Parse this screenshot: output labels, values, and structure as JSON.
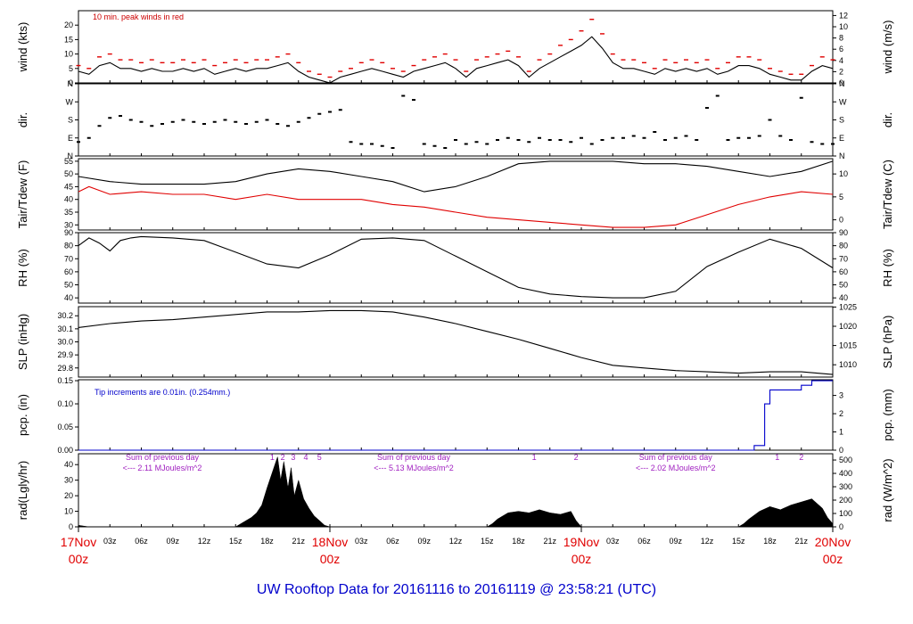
{
  "footer": {
    "title": "UW Rooftop Data for 20161116  to  20161119 @ 23:58:21  (UTC)"
  },
  "x_axis": {
    "start_utc": "2016-11-17 00z",
    "end_utc": "2016-11-20 00z",
    "range_hours": [
      0,
      72
    ],
    "hour_ticks": [
      {
        "h": 3,
        "label": "03z"
      },
      {
        "h": 6,
        "label": "06z"
      },
      {
        "h": 9,
        "label": "09z"
      },
      {
        "h": 12,
        "label": "12z"
      },
      {
        "h": 15,
        "label": "15z"
      },
      {
        "h": 18,
        "label": "18z"
      },
      {
        "h": 21,
        "label": "21z"
      },
      {
        "h": 27,
        "label": "03z"
      },
      {
        "h": 30,
        "label": "06z"
      },
      {
        "h": 33,
        "label": "09z"
      },
      {
        "h": 36,
        "label": "12z"
      },
      {
        "h": 39,
        "label": "15z"
      },
      {
        "h": 42,
        "label": "18z"
      },
      {
        "h": 45,
        "label": "21z"
      },
      {
        "h": 51,
        "label": "03z"
      },
      {
        "h": 54,
        "label": "06z"
      },
      {
        "h": 57,
        "label": "09z"
      },
      {
        "h": 60,
        "label": "12z"
      },
      {
        "h": 63,
        "label": "15z"
      },
      {
        "h": 66,
        "label": "18z"
      },
      {
        "h": 69,
        "label": "21z"
      }
    ],
    "day_ticks": [
      {
        "h": 0,
        "label": "17Nov",
        "sub": "00z"
      },
      {
        "h": 24,
        "label": "18Nov",
        "sub": "00z"
      },
      {
        "h": 48,
        "label": "19Nov",
        "sub": "00z"
      },
      {
        "h": 72,
        "label": "20Nov",
        "sub": "00z"
      }
    ]
  },
  "chart_data": [
    {
      "type": "line",
      "name": "wind",
      "ylabel": "wind (kts)",
      "ylabel_right": "wind (m/s)",
      "ylim": [
        0,
        25
      ],
      "yticks": [
        0,
        5,
        10,
        15,
        20
      ],
      "right_ylim": [
        0,
        12.86
      ],
      "right_yticks": [
        0,
        2,
        4,
        6,
        8,
        10,
        12
      ],
      "annotation": "10 min. peak winds in red",
      "series": [
        {
          "color": "#000000",
          "x": [
            0,
            1,
            2,
            3,
            4,
            5,
            6,
            7,
            8,
            9,
            10,
            11,
            12,
            13,
            14,
            15,
            16,
            17,
            18,
            19,
            20,
            21,
            22,
            23,
            24,
            25,
            26,
            27,
            28,
            29,
            30,
            31,
            32,
            33,
            34,
            35,
            36,
            37,
            38,
            39,
            40,
            41,
            42,
            43,
            44,
            45,
            46,
            47,
            48,
            49,
            50,
            51,
            52,
            53,
            54,
            55,
            56,
            57,
            58,
            59,
            60,
            61,
            62,
            63,
            64,
            65,
            66,
            67,
            68,
            69,
            70,
            71,
            72
          ],
          "y": [
            4,
            3,
            6,
            7,
            5,
            5,
            4,
            5,
            4,
            4,
            5,
            4,
            5,
            3,
            4,
            5,
            4,
            5,
            5,
            6,
            7,
            4,
            2,
            1,
            0,
            2,
            3,
            4,
            5,
            4,
            3,
            2,
            4,
            5,
            6,
            7,
            5,
            2,
            5,
            6,
            7,
            8,
            6,
            2,
            5,
            7,
            9,
            11,
            13,
            16,
            12,
            7,
            5,
            5,
            4,
            3,
            5,
            4,
            5,
            4,
            5,
            3,
            4,
            6,
            6,
            5,
            3,
            2,
            1,
            1,
            4,
            6,
            5
          ]
        },
        {
          "color": "#e00000",
          "style": "dash",
          "x": [
            0,
            1,
            2,
            3,
            4,
            5,
            6,
            7,
            8,
            9,
            10,
            11,
            12,
            13,
            14,
            15,
            16,
            17,
            18,
            19,
            20,
            21,
            22,
            23,
            24,
            25,
            26,
            27,
            28,
            29,
            30,
            31,
            32,
            33,
            34,
            35,
            36,
            37,
            38,
            39,
            40,
            41,
            42,
            43,
            44,
            45,
            46,
            47,
            48,
            49,
            50,
            51,
            52,
            53,
            54,
            55,
            56,
            57,
            58,
            59,
            60,
            61,
            62,
            63,
            64,
            65,
            66,
            67,
            68,
            69,
            70,
            71,
            72
          ],
          "y": [
            6,
            5,
            9,
            10,
            8,
            8,
            7,
            8,
            7,
            7,
            8,
            7,
            8,
            6,
            7,
            8,
            7,
            8,
            8,
            9,
            10,
            7,
            4,
            3,
            2,
            4,
            5,
            7,
            8,
            7,
            5,
            4,
            6,
            8,
            9,
            10,
            8,
            4,
            8,
            9,
            10,
            11,
            9,
            4,
            8,
            10,
            13,
            15,
            18,
            22,
            17,
            10,
            8,
            8,
            7,
            5,
            8,
            7,
            8,
            7,
            8,
            5,
            7,
            9,
            9,
            8,
            5,
            4,
            3,
            3,
            6,
            9,
            8
          ]
        }
      ]
    },
    {
      "type": "scatter",
      "name": "dir",
      "ylabel": "dir.",
      "ylabel_right": "dir.",
      "ylim": [
        0,
        360
      ],
      "yticks": [
        0,
        90,
        180,
        270,
        360
      ],
      "ytick_labels": [
        "N",
        "E",
        "S",
        "W",
        "N"
      ],
      "series": [
        {
          "color": "#000000",
          "x": [
            0,
            1,
            2,
            3,
            4,
            5,
            6,
            7,
            8,
            9,
            10,
            11,
            12,
            13,
            14,
            15,
            16,
            17,
            18,
            19,
            20,
            21,
            22,
            23,
            24,
            25,
            26,
            27,
            28,
            29,
            30,
            31,
            32,
            33,
            34,
            35,
            36,
            37,
            38,
            39,
            40,
            41,
            42,
            43,
            44,
            45,
            46,
            47,
            48,
            49,
            50,
            51,
            52,
            53,
            54,
            55,
            56,
            57,
            58,
            59,
            60,
            61,
            62,
            63,
            64,
            65,
            66,
            67,
            68,
            69,
            70,
            71,
            72
          ],
          "y": [
            70,
            90,
            150,
            190,
            200,
            180,
            170,
            150,
            160,
            170,
            180,
            170,
            160,
            170,
            180,
            170,
            160,
            170,
            180,
            160,
            150,
            170,
            190,
            210,
            220,
            230,
            70,
            60,
            60,
            50,
            40,
            300,
            280,
            60,
            50,
            40,
            80,
            60,
            70,
            60,
            80,
            90,
            80,
            70,
            90,
            80,
            80,
            70,
            90,
            60,
            80,
            90,
            90,
            100,
            90,
            120,
            80,
            90,
            100,
            80,
            240,
            300,
            80,
            90,
            90,
            100,
            180,
            100,
            80,
            290,
            70,
            60,
            60
          ]
        }
      ]
    },
    {
      "type": "line",
      "name": "temperature",
      "ylabel": "Tair/Tdew (F)",
      "ylabel_right": "Tair/Tdew (C)",
      "ylim": [
        28,
        56
      ],
      "yticks": [
        30,
        35,
        40,
        45,
        50,
        55
      ],
      "right_ylim": [
        -2.22,
        13.33
      ],
      "right_yticks": [
        0,
        5,
        10
      ],
      "series": [
        {
          "color": "#000000",
          "x": [
            0,
            3,
            6,
            9,
            12,
            15,
            18,
            21,
            24,
            27,
            30,
            33,
            36,
            39,
            42,
            45,
            48,
            51,
            54,
            57,
            60,
            63,
            66,
            69,
            72
          ],
          "y": [
            49,
            47,
            46,
            46,
            46,
            47,
            50,
            52,
            51,
            49,
            47,
            43,
            45,
            49,
            54,
            55,
            55,
            55,
            54,
            54,
            53,
            51,
            49,
            51,
            55
          ]
        },
        {
          "color": "#e00000",
          "x": [
            0,
            1,
            3,
            6,
            9,
            12,
            15,
            18,
            21,
            24,
            27,
            30,
            33,
            36,
            39,
            42,
            45,
            48,
            51,
            54,
            57,
            60,
            63,
            66,
            69,
            72
          ],
          "y": [
            43,
            45,
            42,
            43,
            42,
            42,
            40,
            42,
            40,
            40,
            40,
            38,
            37,
            35,
            33,
            32,
            31,
            30,
            29,
            29,
            30,
            34,
            38,
            41,
            43,
            42
          ]
        }
      ]
    },
    {
      "type": "line",
      "name": "rh",
      "ylabel": "RH (%)",
      "ylabel_right": "RH (%)",
      "ylim": [
        36,
        90
      ],
      "yticks": [
        40,
        50,
        60,
        70,
        80,
        90
      ],
      "right_ylim": [
        36,
        90
      ],
      "right_yticks": [
        40,
        50,
        60,
        70,
        80,
        90
      ],
      "series": [
        {
          "color": "#000000",
          "x": [
            0,
            1,
            2,
            3,
            4,
            5,
            6,
            9,
            12,
            15,
            18,
            21,
            24,
            27,
            30,
            33,
            36,
            39,
            42,
            45,
            48,
            51,
            54,
            57,
            60,
            63,
            66,
            69,
            72
          ],
          "y": [
            80,
            86,
            82,
            76,
            84,
            86,
            87,
            86,
            84,
            75,
            66,
            63,
            73,
            85,
            86,
            84,
            72,
            60,
            48,
            43,
            41,
            40,
            40,
            45,
            64,
            75,
            85,
            78,
            63
          ]
        }
      ]
    },
    {
      "type": "line",
      "name": "slp",
      "ylabel": "SLP (inHg)",
      "ylabel_right": "SLP (hPa)",
      "ylim": [
        29.73,
        30.27
      ],
      "yticks": [
        29.8,
        29.9,
        30.0,
        30.1,
        30.2
      ],
      "right_ylim": [
        1006.8,
        1025.1
      ],
      "right_yticks": [
        1010,
        1015,
        1020,
        1025
      ],
      "series": [
        {
          "color": "#000000",
          "x": [
            0,
            3,
            6,
            9,
            12,
            15,
            18,
            21,
            24,
            27,
            30,
            33,
            36,
            39,
            42,
            45,
            48,
            51,
            54,
            57,
            60,
            63,
            66,
            69,
            72
          ],
          "y": [
            30.11,
            30.14,
            30.16,
            30.17,
            30.19,
            30.21,
            30.23,
            30.23,
            30.24,
            30.24,
            30.23,
            30.19,
            30.14,
            30.08,
            30.02,
            29.95,
            29.88,
            29.82,
            29.8,
            29.78,
            29.77,
            29.76,
            29.77,
            29.77,
            29.75
          ]
        }
      ]
    },
    {
      "type": "line",
      "name": "pcp",
      "ylabel": "pcp. (in)",
      "ylabel_right": "pcp. (mm)",
      "ylim": [
        0,
        0.152
      ],
      "yticks": [
        0.0,
        0.05,
        0.1,
        0.15
      ],
      "right_ylim": [
        0,
        3.86
      ],
      "right_yticks": [
        0,
        1,
        2,
        3
      ],
      "annotation": "Tip increments are 0.01in. (0.254mm.)",
      "series": [
        {
          "color": "#0000cc",
          "x": [
            0,
            61.5,
            64.5,
            65.5,
            66.0,
            67.0,
            68.0,
            69.0,
            70.0,
            72.0
          ],
          "y": [
            0.0,
            0.0,
            0.01,
            0.1,
            0.13,
            0.13,
            0.13,
            0.14,
            0.15,
            0.15
          ]
        }
      ]
    },
    {
      "type": "area",
      "name": "radiation",
      "ylabel": "rad(Lgly/hr)",
      "ylabel_right": "rad (W/m^2)",
      "ylim": [
        0,
        47
      ],
      "yticks": [
        0,
        10,
        20,
        30,
        40
      ],
      "right_ylim": [
        0,
        547
      ],
      "right_yticks": [
        0,
        100,
        200,
        300,
        400,
        500
      ],
      "annotations": [
        {
          "text": "Sum of previous day",
          "sub": "<--- 2.11 MJoules/m^2",
          "h": 8
        },
        {
          "text": "Sum of previous day",
          "sub": "<--- 5.13 MJoules/m^2",
          "h": 32
        },
        {
          "text": "Sum of previous day",
          "sub": "<--- 2.02 MJoules/m^2",
          "h": 57
        }
      ],
      "markers": [
        {
          "h": 18.5,
          "label": "1"
        },
        {
          "h": 19.5,
          "label": "2"
        },
        {
          "h": 20.5,
          "label": "3"
        },
        {
          "h": 21.7,
          "label": "4"
        },
        {
          "h": 23.0,
          "label": "5"
        },
        {
          "h": 43.5,
          "label": "1"
        },
        {
          "h": 47.5,
          "label": "2"
        },
        {
          "h": 66.7,
          "label": "1"
        },
        {
          "h": 69.0,
          "label": "2"
        }
      ],
      "series": [
        {
          "color": "#000000",
          "x": [
            0,
            1,
            2,
            15.0,
            15.5,
            16,
            16.5,
            17,
            17.5,
            18,
            18.5,
            19,
            19.3,
            19.6,
            20,
            20.3,
            20.6,
            21,
            21.5,
            22,
            22.5,
            23,
            23.5,
            24,
            39,
            39.5,
            40,
            41,
            42,
            43,
            44,
            45,
            46,
            47,
            47.5,
            48,
            63,
            63.5,
            64,
            65,
            66,
            67,
            68,
            69,
            70,
            71,
            71.5,
            72
          ],
          "y": [
            1,
            0,
            0,
            0,
            2,
            4,
            6,
            9,
            14,
            25,
            35,
            45,
            30,
            42,
            25,
            38,
            20,
            30,
            18,
            12,
            7,
            4,
            1,
            0,
            0,
            2,
            5,
            9,
            10,
            9,
            11,
            9,
            8,
            10,
            4,
            0,
            0,
            2,
            5,
            10,
            13,
            11,
            14,
            16,
            18,
            12,
            6,
            2
          ]
        }
      ]
    }
  ]
}
